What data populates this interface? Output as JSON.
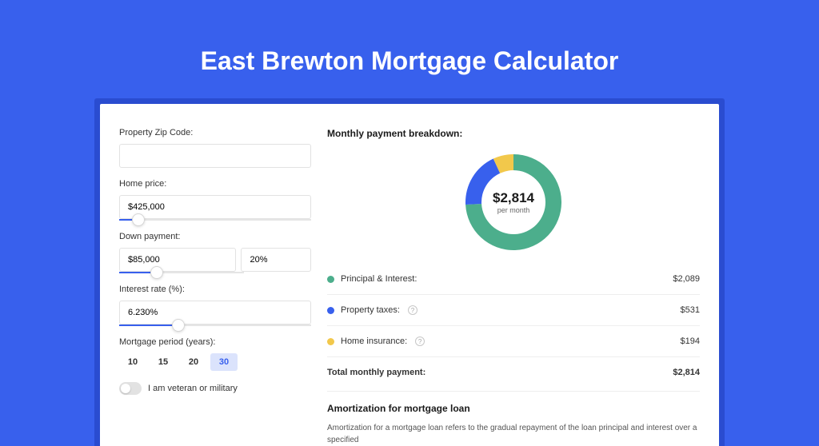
{
  "page": {
    "title": "East Brewton Mortgage Calculator",
    "bg_color": "#3860ed",
    "card_wrap_color": "#2a4cd0",
    "card_color": "#ffffff"
  },
  "form": {
    "zip": {
      "label": "Property Zip Code:",
      "value": ""
    },
    "home_price": {
      "label": "Home price:",
      "value": "$425,000",
      "slider_pct": 10
    },
    "down_payment": {
      "label": "Down payment:",
      "amount": "$85,000",
      "percent": "20%",
      "slider_pct": 20
    },
    "interest": {
      "label": "Interest rate (%):",
      "value": "6.230%",
      "slider_pct": 31
    },
    "period": {
      "label": "Mortgage period (years):",
      "options": [
        "10",
        "15",
        "20",
        "30"
      ],
      "active_index": 3
    },
    "veteran": {
      "label": "I am veteran or military",
      "on": false
    }
  },
  "breakdown": {
    "title": "Monthly payment breakdown:",
    "donut": {
      "value": "$2,814",
      "sub": "per month",
      "slices": [
        {
          "color": "#4cae8c",
          "pct": 74.2
        },
        {
          "color": "#3860ed",
          "pct": 18.9
        },
        {
          "color": "#f2c84b",
          "pct": 6.9
        }
      ],
      "thickness": 20
    },
    "rows": [
      {
        "color": "#4cae8c",
        "label": "Principal & Interest:",
        "value": "$2,089",
        "info": false
      },
      {
        "color": "#3860ed",
        "label": "Property taxes:",
        "value": "$531",
        "info": true
      },
      {
        "color": "#f2c84b",
        "label": "Home insurance:",
        "value": "$194",
        "info": true
      }
    ],
    "total": {
      "label": "Total monthly payment:",
      "value": "$2,814"
    }
  },
  "amortization": {
    "title": "Amortization for mortgage loan",
    "text": "Amortization for a mortgage loan refers to the gradual repayment of the loan principal and interest over a specified"
  }
}
